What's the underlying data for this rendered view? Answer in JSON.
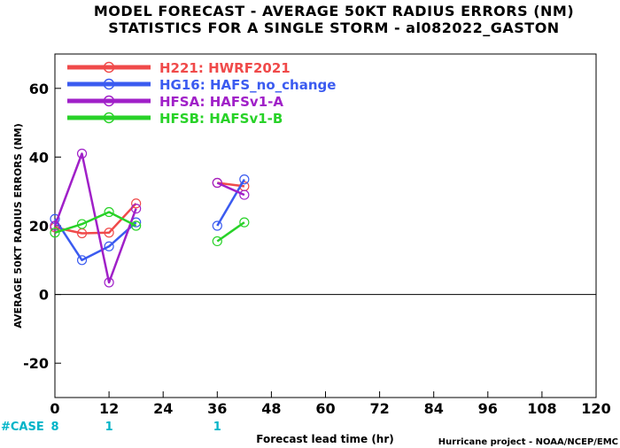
{
  "chart_data": {
    "type": "line",
    "title": "MODEL FORECAST - AVERAGE 50KT RADIUS ERRORS (NM)",
    "subtitle": "STATISTICS FOR A SINGLE STORM - al082022_GASTON",
    "xlabel": "Forecast lead time (hr)",
    "ylabel": "AVERAGE 50KT RADIUS ERRORS (NM)",
    "xlim": [
      0,
      120
    ],
    "ylim": [
      -30,
      70
    ],
    "x_ticks": [
      "0",
      "12",
      "24",
      "36",
      "48",
      "60",
      "72",
      "84",
      "96",
      "108",
      "120"
    ],
    "y_ticks": [
      "60",
      "40",
      "20",
      "0",
      "-20"
    ],
    "grid": false,
    "legend_position": "top-left",
    "series": [
      {
        "name": "H221: HWRF2021",
        "color": "#f04a4a",
        "segments": [
          [
            [
              0,
              19.5
            ],
            [
              6,
              17.8
            ],
            [
              12,
              18
            ],
            [
              18,
              26.5
            ]
          ],
          [
            [
              36,
              32.5
            ],
            [
              42,
              31.5
            ]
          ]
        ]
      },
      {
        "name": "HG16: HAFS_no_change",
        "color": "#3b5bf0",
        "segments": [
          [
            [
              0,
              22
            ],
            [
              6,
              10
            ],
            [
              12,
              14
            ],
            [
              18,
              21
            ]
          ],
          [
            [
              36,
              20
            ],
            [
              42,
              33.5
            ]
          ]
        ]
      },
      {
        "name": "HFSA: HAFSv1-A",
        "color": "#a020c8",
        "segments": [
          [
            [
              0,
              20
            ],
            [
              6,
              41
            ],
            [
              12,
              3.5
            ],
            [
              18,
              25
            ]
          ],
          [
            [
              36,
              32.5
            ],
            [
              42,
              29
            ]
          ]
        ]
      },
      {
        "name": "HFSB: HAFSv1-B",
        "color": "#28d228",
        "segments": [
          [
            [
              0,
              18
            ],
            [
              6,
              20.5
            ],
            [
              12,
              24
            ],
            [
              18,
              20
            ]
          ],
          [
            [
              36,
              15.5
            ],
            [
              42,
              21
            ]
          ]
        ]
      }
    ],
    "case_counts": {
      "label": "#CASE",
      "values": [
        {
          "x": 0,
          "count": "8"
        },
        {
          "x": 12,
          "count": "1"
        },
        {
          "x": 36,
          "count": "1"
        }
      ]
    },
    "credit": "Hurricane project - NOAA/NCEP/EMC"
  }
}
